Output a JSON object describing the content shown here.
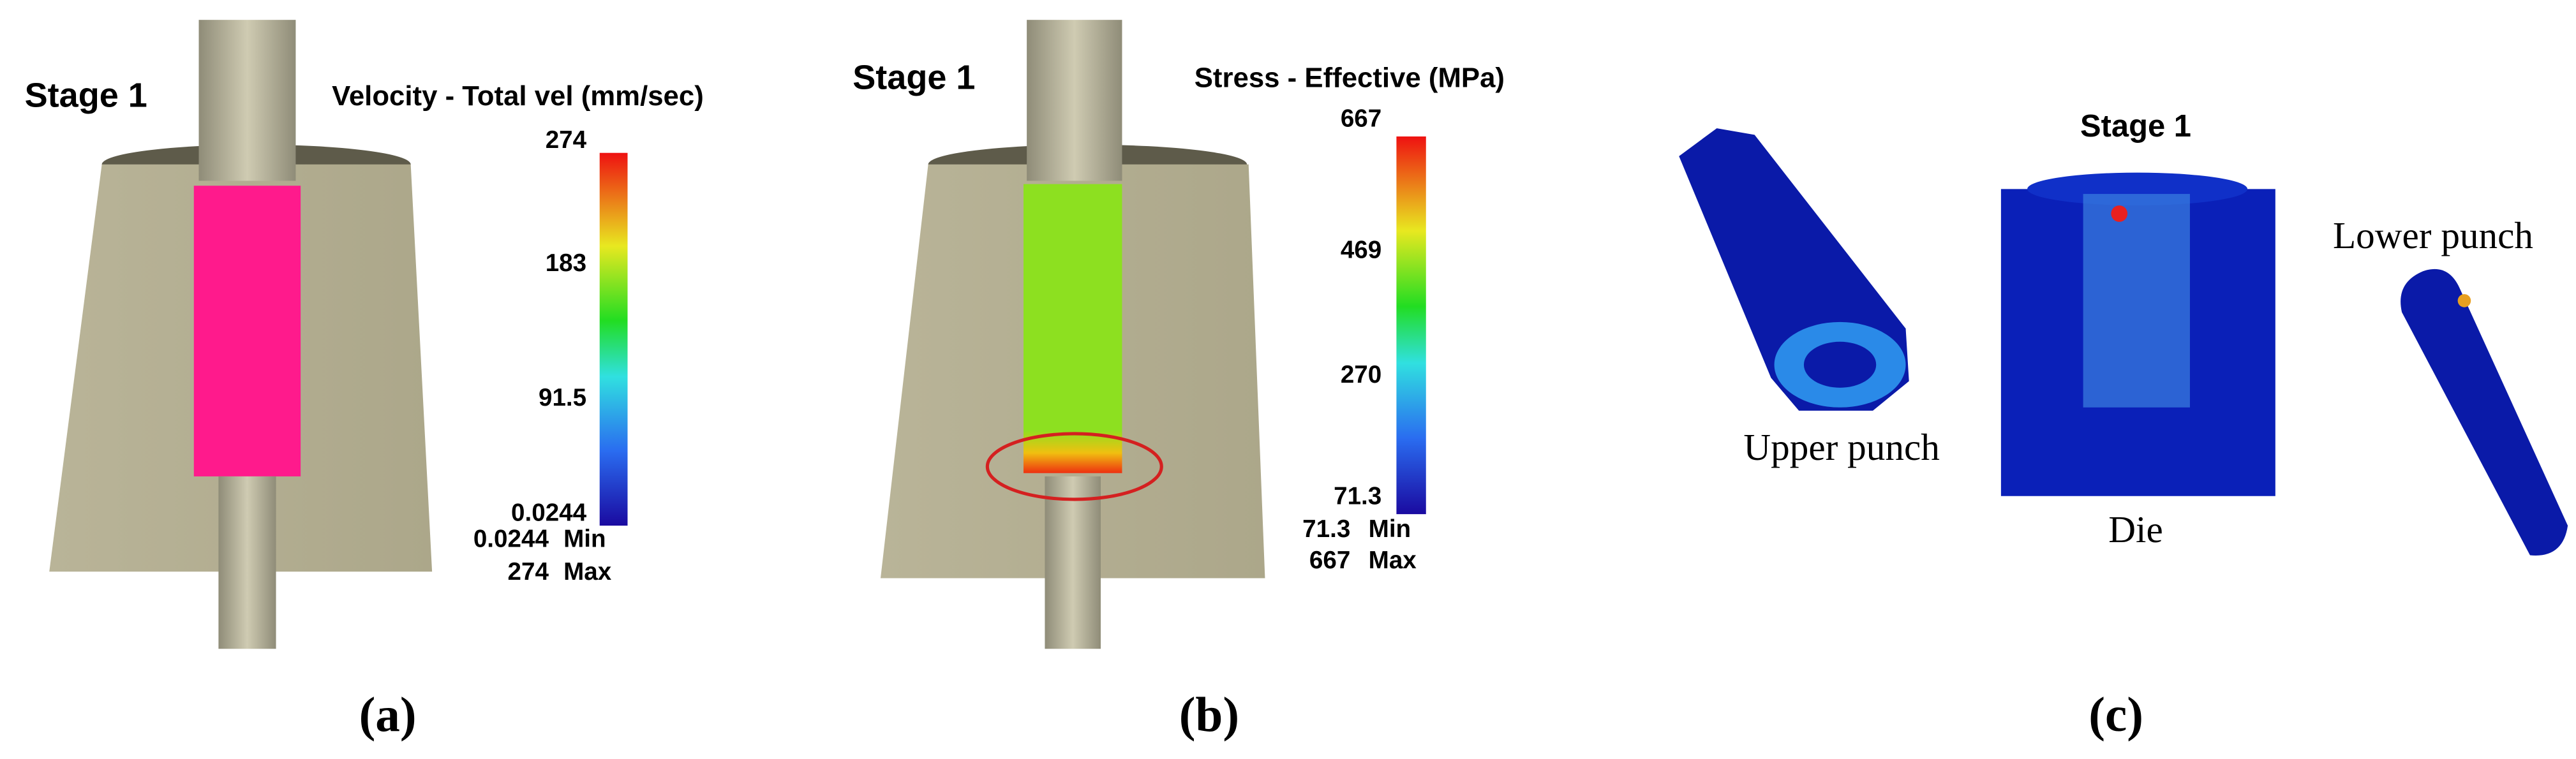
{
  "panels": [
    {
      "stage": "Stage 1",
      "title": "Velocity - Total vel (mm/sec)",
      "colorbar": {
        "ticks": [
          "274",
          "183",
          "91.5",
          "0.0244"
        ],
        "min_value": "0.0244",
        "min_label": "Min",
        "max_value": "274",
        "max_label": "Max"
      },
      "caption": "(a)"
    },
    {
      "stage": "Stage 1",
      "title": "Stress - Effective (MPa)",
      "colorbar": {
        "ticks": [
          "667",
          "469",
          "270",
          "71.3"
        ],
        "min_value": "71.3",
        "min_label": "Min",
        "max_value": "667",
        "max_label": "Max"
      },
      "caption": "(b)"
    },
    {
      "stage": "Stage 1",
      "labels": [
        "Upper punch",
        "Die",
        "Lower punch"
      ],
      "caption": "(c)"
    }
  ]
}
